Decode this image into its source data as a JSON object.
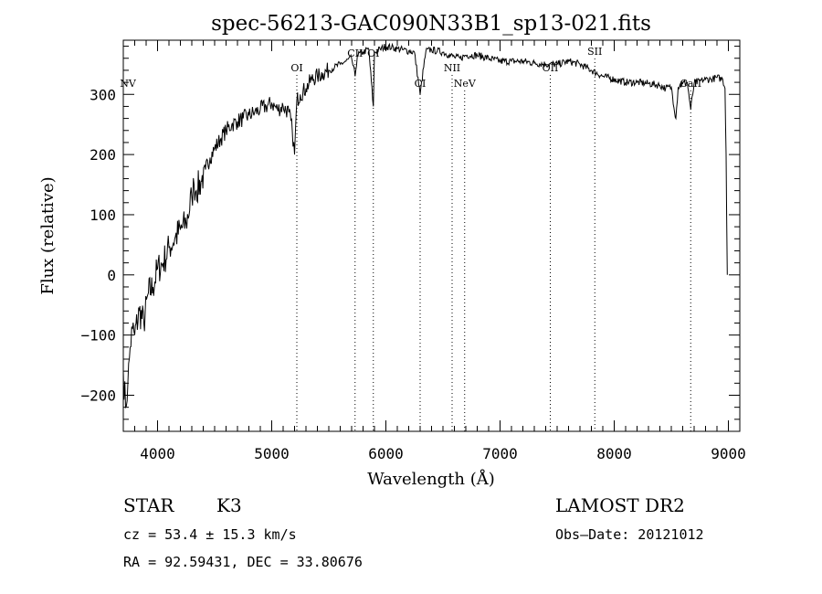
{
  "chart_data": {
    "type": "line",
    "title": "spec-56213-GAC090N33B1_sp13-021.fits",
    "xlabel": "Wavelength (Å)",
    "ylabel": "Flux (relative)",
    "xlim": [
      3700,
      9100
    ],
    "ylim": [
      -260,
      390
    ],
    "x_ticks": [
      4000,
      5000,
      6000,
      7000,
      8000,
      9000
    ],
    "y_ticks": [
      -200,
      -100,
      0,
      100,
      200,
      300
    ],
    "grid": false,
    "series": [
      {
        "x": [
          3700,
          3720,
          3740,
          3760,
          3780,
          3800,
          3840,
          3880,
          3920,
          3960,
          4000,
          4050,
          4100,
          4150,
          4200,
          4250,
          4300,
          4320,
          4340,
          4380,
          4420,
          4460,
          4500,
          4550,
          4600,
          4650,
          4700,
          4750,
          4800,
          4850,
          4900,
          4950,
          5000,
          5050,
          5100,
          5150,
          5180,
          5200,
          5220,
          5250,
          5300,
          5350,
          5400,
          5450,
          5500,
          5550,
          5600,
          5650,
          5700,
          5730,
          5750,
          5800,
          5850,
          5890,
          5900,
          5950,
          6000,
          6050,
          6100,
          6150,
          6200,
          6250,
          6300,
          6350,
          6400,
          6450,
          6500,
          6550,
          6600,
          6650,
          6700,
          6800,
          6900,
          7000,
          7100,
          7200,
          7300,
          7400,
          7500,
          7600,
          7700,
          7800,
          7900,
          8000,
          8100,
          8200,
          8300,
          8400,
          8450,
          8500,
          8540,
          8560,
          8600,
          8640,
          8670,
          8700,
          8750,
          8800,
          8850,
          8900,
          8950,
          8970,
          8980,
          8990
        ],
        "y": [
          -160,
          -220,
          -180,
          -120,
          -90,
          -100,
          -60,
          -80,
          -30,
          -20,
          10,
          20,
          45,
          60,
          75,
          85,
          130,
          150,
          140,
          155,
          175,
          195,
          210,
          225,
          240,
          250,
          255,
          260,
          265,
          270,
          275,
          280,
          285,
          275,
          280,
          270,
          240,
          200,
          290,
          300,
          310,
          325,
          330,
          335,
          340,
          345,
          350,
          355,
          360,
          330,
          365,
          370,
          375,
          280,
          370,
          375,
          380,
          378,
          376,
          374,
          372,
          370,
          300,
          372,
          374,
          372,
          370,
          366,
          362,
          360,
          365,
          365,
          360,
          355,
          355,
          355,
          352,
          350,
          350,
          355,
          350,
          340,
          330,
          325,
          320,
          320,
          318,
          315,
          310,
          312,
          260,
          312,
          318,
          320,
          275,
          318,
          322,
          325,
          325,
          328,
          325,
          310,
          200,
          0
        ]
      }
    ],
    "line_labels": [
      {
        "name": "NV",
        "x": 3740
      },
      {
        "name": "OI",
        "x": 5220
      },
      {
        "name": "CII",
        "x": 5730
      },
      {
        "name": "OI",
        "x": 5890
      },
      {
        "name": "CI",
        "x": 6300
      },
      {
        "name": "NII",
        "x": 6580
      },
      {
        "name": "NeV",
        "x": 6690
      },
      {
        "name": "OII",
        "x": 7440
      },
      {
        "name": "SII",
        "x": 7830
      },
      {
        "name": "CaII",
        "x": 8670
      }
    ]
  },
  "info": {
    "class_label": "STAR",
    "subclass": "K3",
    "survey": "LAMOST DR2",
    "cz_text": "cz = 53.4 ± 15.3 km/s",
    "obs_date_text": "Obs–Date: 20121012",
    "radec_text": "RA =  92.59431, DEC =  33.80676"
  }
}
